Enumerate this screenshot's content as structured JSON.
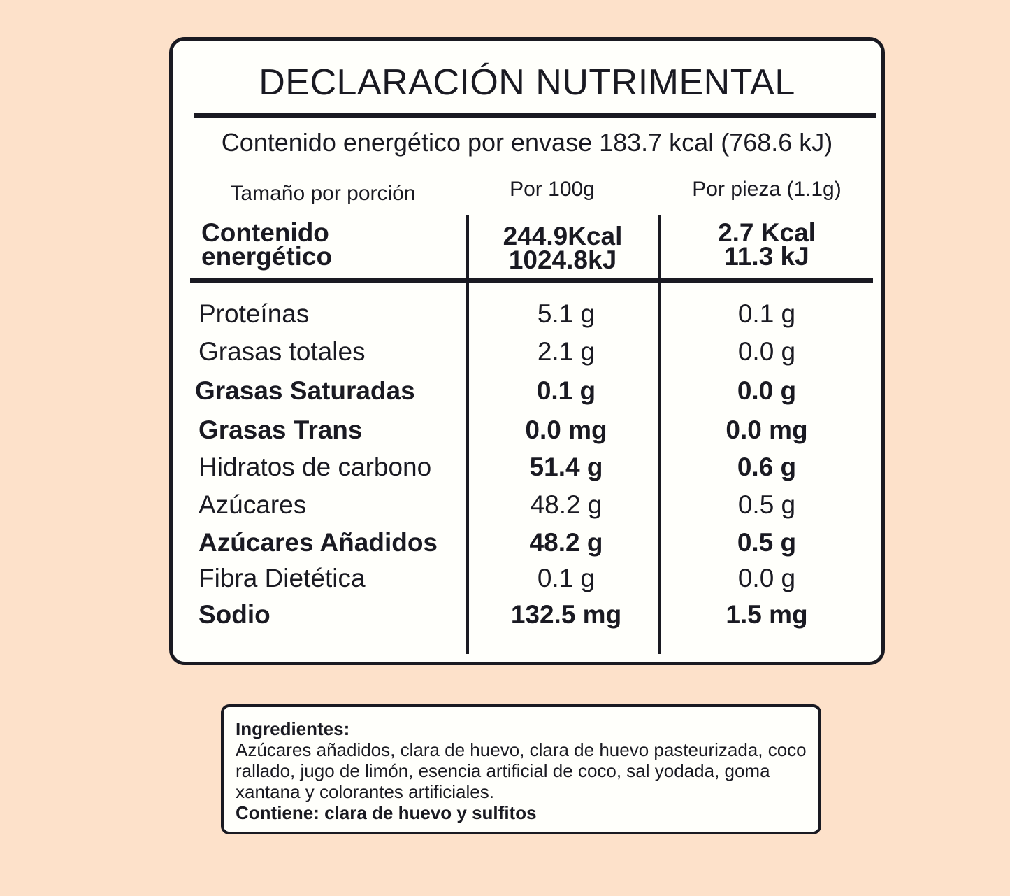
{
  "label": {
    "title": "DECLARACIÓN NUTRIMENTAL",
    "energy_per_package": "Contenido energético por envase 183.7 kcal (768.6 kJ)",
    "headers": {
      "portion": "Tamaño por porción",
      "per_100g": "Por 100g",
      "per_piece": "Por pieza (1.1g)"
    },
    "energy": {
      "label_line1": "Contenido",
      "label_line2": "energético",
      "per_100g_kcal": "244.9Kcal",
      "per_100g_kj": "1024.8kJ",
      "per_piece_kcal": "2.7 Kcal",
      "per_piece_kj": "11.3 kJ"
    },
    "rows": [
      {
        "label": "Proteínas",
        "per_100g": "5.1 g",
        "per_piece": "0.1 g"
      },
      {
        "label": "Grasas totales",
        "per_100g": "2.1 g",
        "per_piece": "0.0 g"
      },
      {
        "label": "Grasas Saturadas",
        "per_100g": "0.1 g",
        "per_piece": "0.0 g"
      },
      {
        "label": "Grasas Trans",
        "per_100g": "0.0 mg",
        "per_piece": "0.0 mg"
      },
      {
        "label": "Hidratos de carbono",
        "per_100g": "51.4 g",
        "per_piece": "0.6 g"
      },
      {
        "label": "Azúcares",
        "per_100g": "48.2 g",
        "per_piece": "0.5 g"
      },
      {
        "label": "Azúcares Añadidos",
        "per_100g": "48.2 g",
        "per_piece": "0.5 g"
      },
      {
        "label": "Fibra Dietética",
        "per_100g": "0.1 g",
        "per_piece": "0.0 g"
      },
      {
        "label": "Sodio",
        "per_100g": "132.5 mg",
        "per_piece": "1.5 mg"
      }
    ]
  },
  "ingredients": {
    "title": "Ingredientes:",
    "text": "Azúcares añadidos, clara de huevo, clara de huevo pasteurizada, coco rallado, jugo de limón, esencia artificial de coco, sal yodada, goma xantana y colorantes artificiales.",
    "contains": "Contiene: clara de huevo y sulfitos"
  },
  "colors": {
    "background": "#fde1ca",
    "panel": "#fffffb",
    "ink": "#1a1a22"
  }
}
